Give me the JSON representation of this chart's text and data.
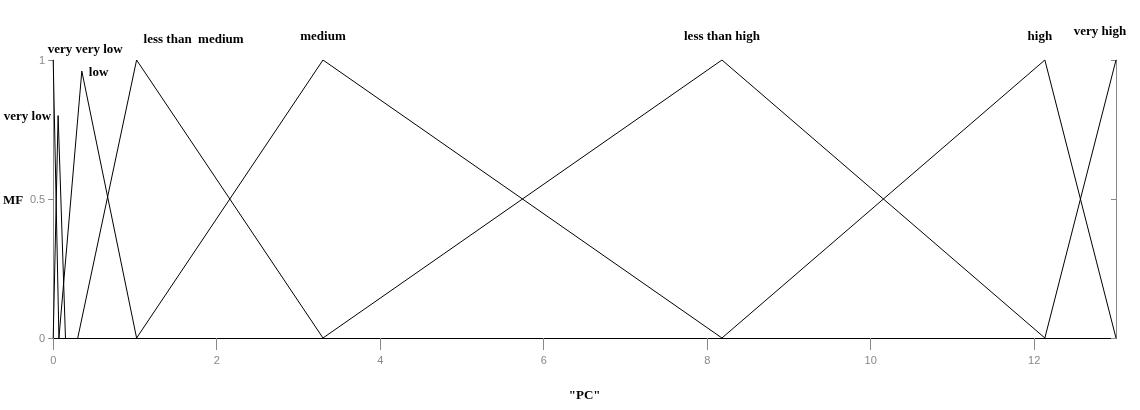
{
  "chart_data": {
    "type": "line",
    "xlabel": "\"PC\"",
    "ylabel": "MF",
    "xlim": [
      0,
      13
    ],
    "xticks": [
      0,
      2,
      4,
      6,
      8,
      10,
      12
    ],
    "ylim": [
      0,
      1
    ],
    "yticks": [
      0,
      0.5,
      1
    ],
    "grid": false,
    "legend": false,
    "marker": "none",
    "line_style": "solid",
    "series": [
      {
        "name": "very very low",
        "color": "#000000",
        "x": [
          0,
          0.07
        ],
        "values": [
          1,
          0
        ]
      },
      {
        "name": "very low",
        "color": "#000000",
        "x": [
          0,
          0.06,
          0.15
        ],
        "values": [
          0,
          0.8,
          0
        ]
      },
      {
        "name": "low",
        "color": "#000000",
        "x": [
          0.07,
          0.35,
          1.02
        ],
        "values": [
          0,
          0.96,
          0
        ]
      },
      {
        "name": "less than  medium",
        "color": "#000000",
        "x": [
          0.3,
          1.02,
          3.3
        ],
        "values": [
          0,
          1,
          0
        ]
      },
      {
        "name": "medium",
        "color": "#000000",
        "x": [
          1.02,
          3.3,
          8.18
        ],
        "values": [
          0,
          1,
          0
        ]
      },
      {
        "name": "less than high",
        "color": "#000000",
        "x": [
          3.3,
          8.18,
          12.13
        ],
        "values": [
          0,
          1,
          0
        ]
      },
      {
        "name": "high",
        "color": "#000000",
        "x": [
          8.18,
          12.13,
          13
        ],
        "values": [
          0,
          1,
          0
        ]
      },
      {
        "name": "very high",
        "color": "#000000",
        "x": [
          12.13,
          13
        ],
        "values": [
          0,
          1
        ]
      }
    ]
  }
}
